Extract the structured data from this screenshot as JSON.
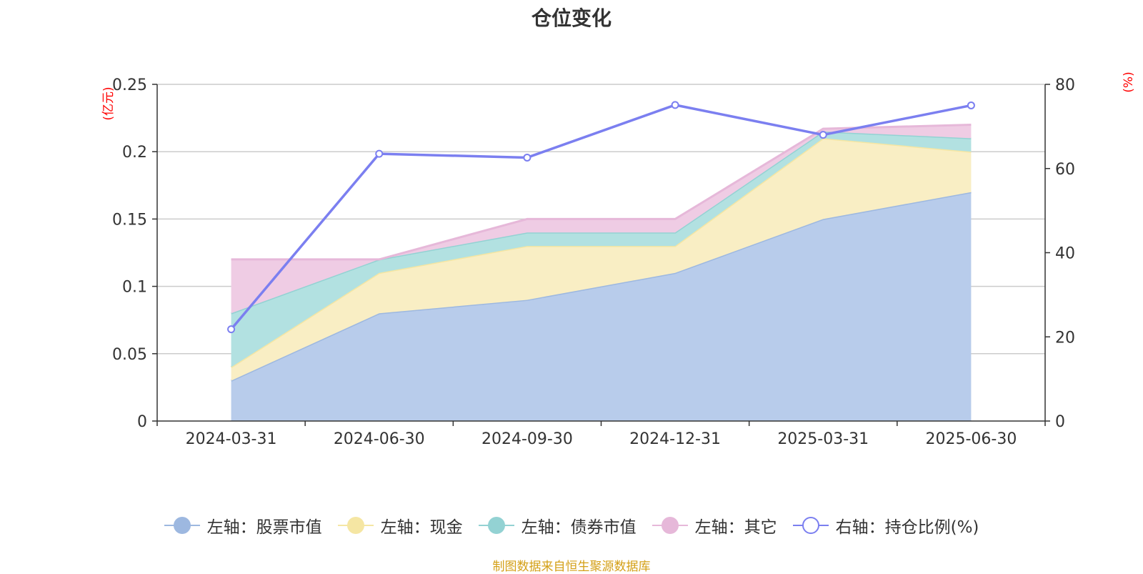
{
  "title": "仓位变化",
  "source": "制图数据来自恒生聚源数据库",
  "chart_data": {
    "type": "area",
    "title": "仓位变化",
    "categories": [
      "2024-03-31",
      "2024-06-30",
      "2024-09-30",
      "2024-12-31",
      "2025-03-31",
      "2025-06-30"
    ],
    "left_axis": {
      "unit": "(亿元)",
      "ylim": [
        0,
        0.25
      ],
      "ticks": [
        "0",
        "0.05",
        "0.1",
        "0.15",
        "0.2",
        "0.25"
      ]
    },
    "right_axis": {
      "unit": "(%)",
      "ylim": [
        0,
        80
      ],
      "ticks": [
        "0",
        "20",
        "40",
        "60",
        "80"
      ]
    },
    "stacked": true,
    "series": [
      {
        "name": "左轴：股票市值",
        "axis": "left",
        "type": "area",
        "color": "#9db8e0",
        "fill": "#b8cceb",
        "values": [
          0.03,
          0.08,
          0.09,
          0.11,
          0.15,
          0.17
        ]
      },
      {
        "name": "左轴：现金",
        "axis": "left",
        "type": "area",
        "color": "#f5e6a3",
        "fill": "#f9eec4",
        "values": [
          0.01,
          0.03,
          0.04,
          0.02,
          0.06,
          0.03
        ]
      },
      {
        "name": "左轴：债券市值",
        "axis": "left",
        "type": "area",
        "color": "#93d2d3",
        "fill": "#b2e1e1",
        "values": [
          0.04,
          0.01,
          0.01,
          0.01,
          0.005,
          0.01
        ]
      },
      {
        "name": "左轴：其它",
        "axis": "left",
        "type": "area",
        "color": "#e6b8d9",
        "fill": "#efcce4",
        "values": [
          0.04,
          0.0,
          0.01,
          0.01,
          0.002,
          0.01
        ]
      },
      {
        "name": "右轴：持仓比例(%)",
        "axis": "right",
        "type": "line",
        "color": "#7b7ff0",
        "values": [
          21.8,
          63.5,
          62.6,
          75.1,
          68.0,
          75.0
        ]
      }
    ],
    "grid": true,
    "legend_position": "bottom"
  }
}
